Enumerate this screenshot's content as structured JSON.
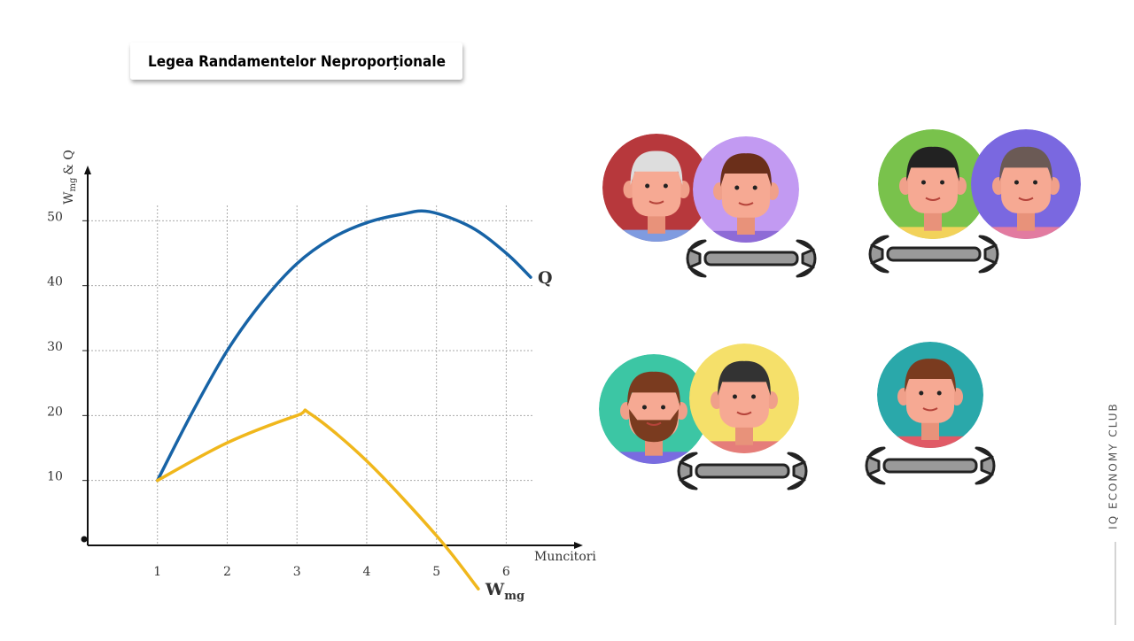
{
  "title": "Legea Randamentelor Neproporționale",
  "brand": "IQ ECONOMY CLUB",
  "chart_data": {
    "type": "line",
    "y_label": {
      "main": "W",
      "sub": "mg",
      "rest": "& Q"
    },
    "x_label": "Muncitori",
    "xlim": [
      0,
      7.1
    ],
    "ylim": [
      0,
      58.5
    ],
    "xticks": [
      1,
      2,
      3,
      4,
      5,
      6
    ],
    "yticks": [
      10,
      20,
      30,
      40,
      50
    ],
    "grid": true,
    "series": [
      {
        "name": "Q",
        "color": "#1763a6",
        "x": [
          1,
          1.5,
          2,
          2.5,
          3,
          3.5,
          4,
          4.5,
          4.9,
          5.5,
          6,
          6.35
        ],
        "values": [
          10,
          20.5,
          30,
          37.5,
          43.4,
          47.3,
          49.7,
          51,
          51.4,
          49,
          45,
          41.3
        ]
      },
      {
        "name": "W",
        "sub": "mg",
        "color": "#f0b71c",
        "x": [
          1,
          2,
          3,
          3.2,
          4,
          5,
          5.6
        ],
        "values": [
          10,
          15.8,
          20,
          20.2,
          13,
          1.5,
          -6.7
        ]
      }
    ]
  }
}
